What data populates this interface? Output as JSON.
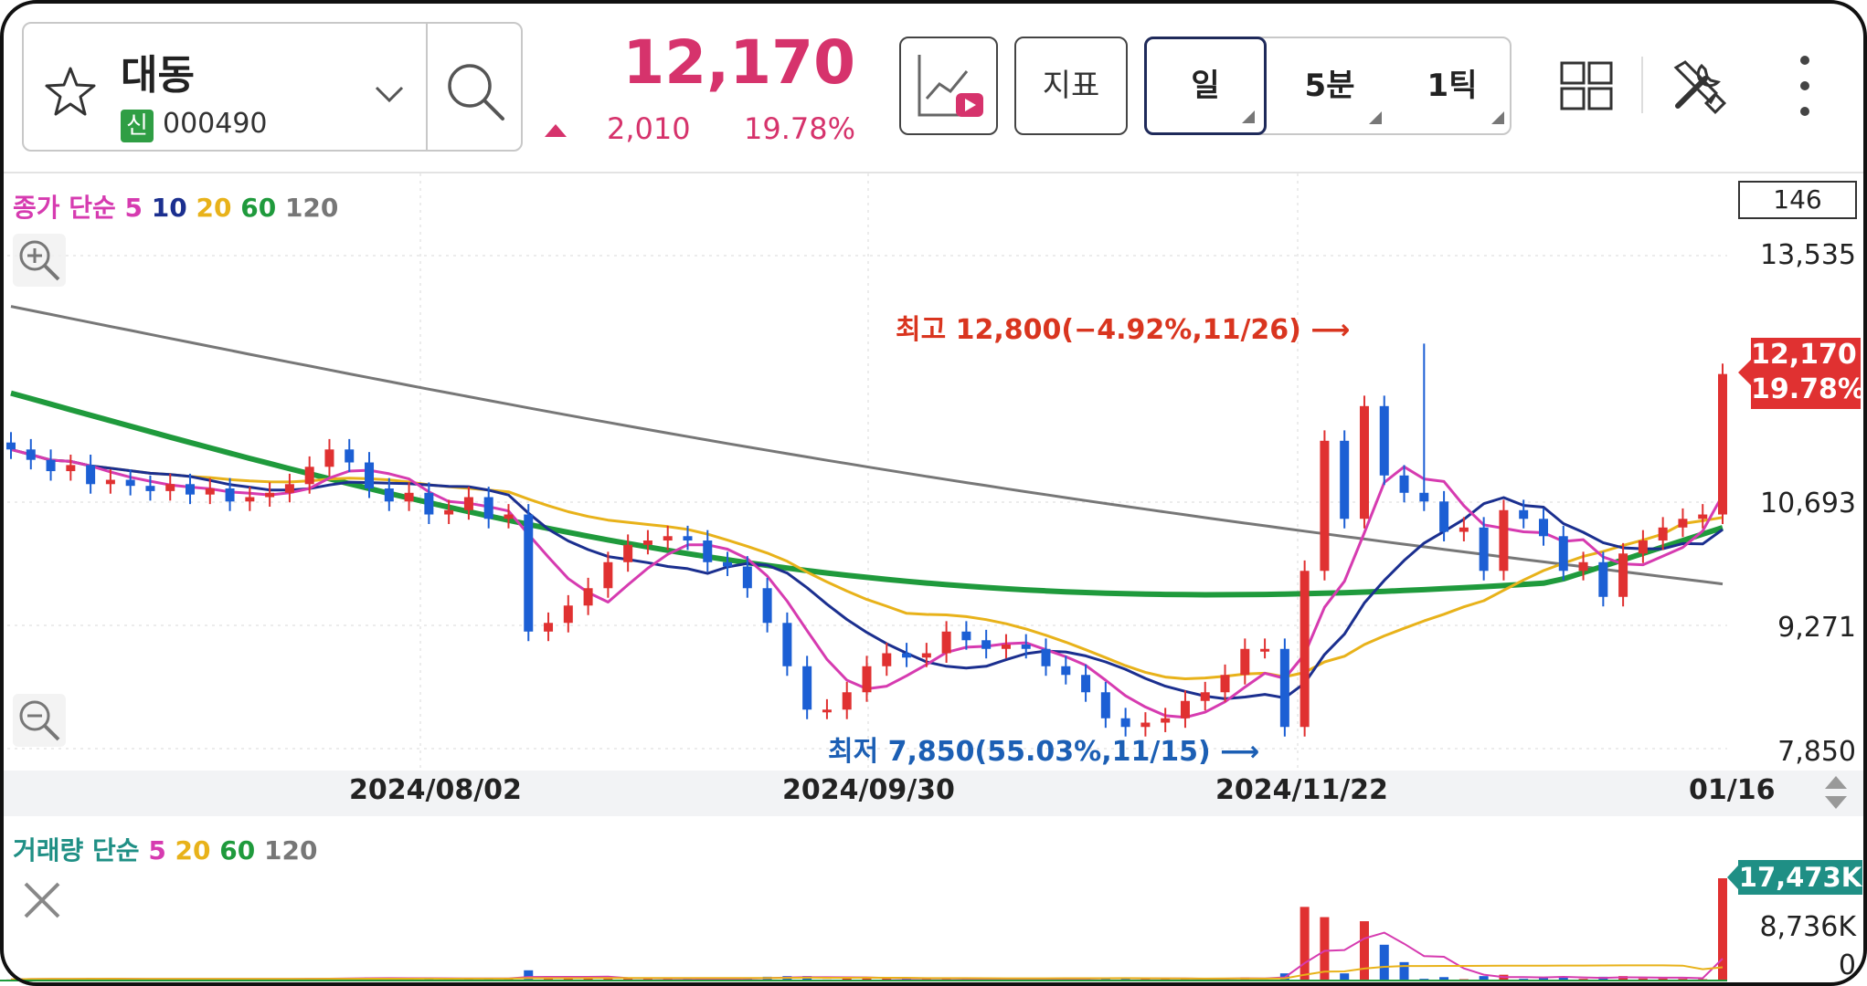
{
  "stock": {
    "name": "대동",
    "badge": "신",
    "code": "000490"
  },
  "quote": {
    "price": "12,170",
    "change": "2,010",
    "change_pct": "19.78%",
    "color": "#d6336c"
  },
  "toolbar": {
    "indicator_label": "지표",
    "periods": [
      "일",
      "5분",
      "1틱"
    ],
    "active_period": "일"
  },
  "icons": [
    "star-icon",
    "chevron-down-icon",
    "search-icon",
    "chart-play-icon",
    "grid-layout-icon",
    "tools-icon",
    "more-vertical-icon",
    "zoom-in-icon",
    "zoom-out-icon",
    "close-icon",
    "scroll-arrows-icon"
  ],
  "price_legend": {
    "prefix": "종가 단순",
    "items": [
      {
        "label": "5",
        "color": "#d63bb0"
      },
      {
        "label": "10",
        "color": "#1b2f8f"
      },
      {
        "label": "20",
        "color": "#e8b21a"
      },
      {
        "label": "60",
        "color": "#1f9a3c"
      },
      {
        "label": "120",
        "color": "#777777"
      }
    ]
  },
  "volume_legend": {
    "prefix": "거래량 단순",
    "items": [
      {
        "label": "5",
        "color": "#d63bb0"
      },
      {
        "label": "20",
        "color": "#e8b21a"
      },
      {
        "label": "60",
        "color": "#1f9a3c"
      },
      {
        "label": "120",
        "color": "#777777"
      }
    ]
  },
  "view_count": "146",
  "y_labels": [
    "13,535",
    "10,693",
    "9,271",
    "7,850"
  ],
  "price_tag": {
    "price": "12,170",
    "pct": "19.78%"
  },
  "annotations": {
    "high": "최고 12,800(−4.92%,11/26)",
    "low": "최저 7,850(55.03%,11/15)"
  },
  "x_labels": [
    "2024/08/02",
    "2024/09/30",
    "2024/11/22",
    "01/16"
  ],
  "volume_labels": {
    "tag": "17,473K",
    "mid": "8,736K",
    "zero": "0"
  },
  "chart_data": {
    "type": "candlestick",
    "title": "",
    "x_ticks": [
      "2024/08/02",
      "2024/09/30",
      "2024/11/22",
      "01/16"
    ],
    "y_ticks": [
      13535,
      10693,
      9271,
      7850
    ],
    "ylim": [
      7850,
      13535
    ],
    "high": {
      "value": 12800,
      "date": "11/26"
    },
    "low": {
      "value": 7850,
      "date": "11/15"
    },
    "last": {
      "value": 12170,
      "change": 2010,
      "change_pct": 19.78
    },
    "close_approx": [
      11300,
      11180,
      11050,
      11120,
      10900,
      10950,
      10880,
      10820,
      10900,
      10780,
      10850,
      10700,
      10750,
      10800,
      10900,
      11100,
      11300,
      11150,
      10850,
      10700,
      10800,
      10550,
      10600,
      10750,
      10500,
      10550,
      9200,
      9300,
      9500,
      9700,
      10000,
      10200,
      10250,
      10300,
      10250,
      10000,
      9950,
      9700,
      9300,
      8800,
      8300,
      8300,
      8500,
      8800,
      8950,
      8900,
      8950,
      9200,
      9100,
      9000,
      9050,
      9000,
      8800,
      8700,
      8500,
      8200,
      8100,
      8150,
      8200,
      8400,
      8500,
      8700,
      9000,
      9000,
      8100,
      9900,
      11400,
      10500,
      11800,
      11000,
      10800,
      10700,
      10350,
      10400,
      9900,
      10600,
      10500,
      10300,
      9900,
      10000,
      9600,
      10100,
      10250,
      10400,
      10500,
      10550,
      12170
    ],
    "volume_max_label": "17,473K",
    "volume_mid_label": "8,736K"
  }
}
